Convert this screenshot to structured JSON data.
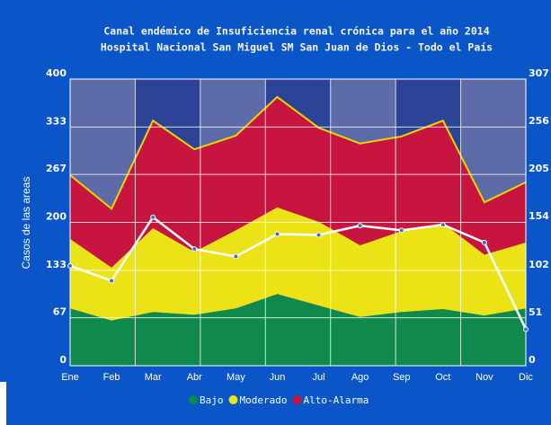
{
  "chart_data": {
    "type": "stacked_area_line",
    "title": "Canal endémico de Insuficiencia renal crónica para el año 2014",
    "subtitle": "Hospital Nacional San Miguel  SM San Juan de Dios - Todo el País",
    "ylabel": "Casos de las areas",
    "categories": [
      "Ene",
      "Feb",
      "Mar",
      "Abr",
      "May",
      "Jun",
      "Jul",
      "Ago",
      "Sep",
      "Oct",
      "Nov",
      "Dic"
    ],
    "series": [
      {
        "name": "Bajo",
        "color": "#0f8a4c",
        "values": [
          80,
          63,
          75,
          71,
          80,
          100,
          84,
          68,
          75,
          79,
          70,
          80
        ]
      },
      {
        "name": "Moderado",
        "color": "#ece316",
        "values": [
          97,
          74,
          117,
          88,
          109,
          121,
          117,
          100,
          113,
          120,
          85,
          92
        ]
      },
      {
        "name": "Alto-Alarma",
        "color": "#c8153f",
        "values": [
          89,
          82,
          150,
          143,
          132,
          154,
          131,
          142,
          132,
          143,
          73,
          84
        ]
      }
    ],
    "line": {
      "color": "#ffffff",
      "axis": "y2",
      "values": [
        107,
        91,
        159,
        125,
        117,
        141,
        140,
        150,
        145,
        151,
        132,
        39
      ]
    },
    "ylim": [
      0,
      400
    ],
    "yticks": [
      0,
      67,
      133,
      200,
      267,
      333,
      400
    ],
    "y2lim": [
      0,
      307
    ],
    "y2ticks": [
      0,
      51,
      102,
      154,
      205,
      256,
      307
    ],
    "grid": true,
    "legend": "bottom"
  }
}
